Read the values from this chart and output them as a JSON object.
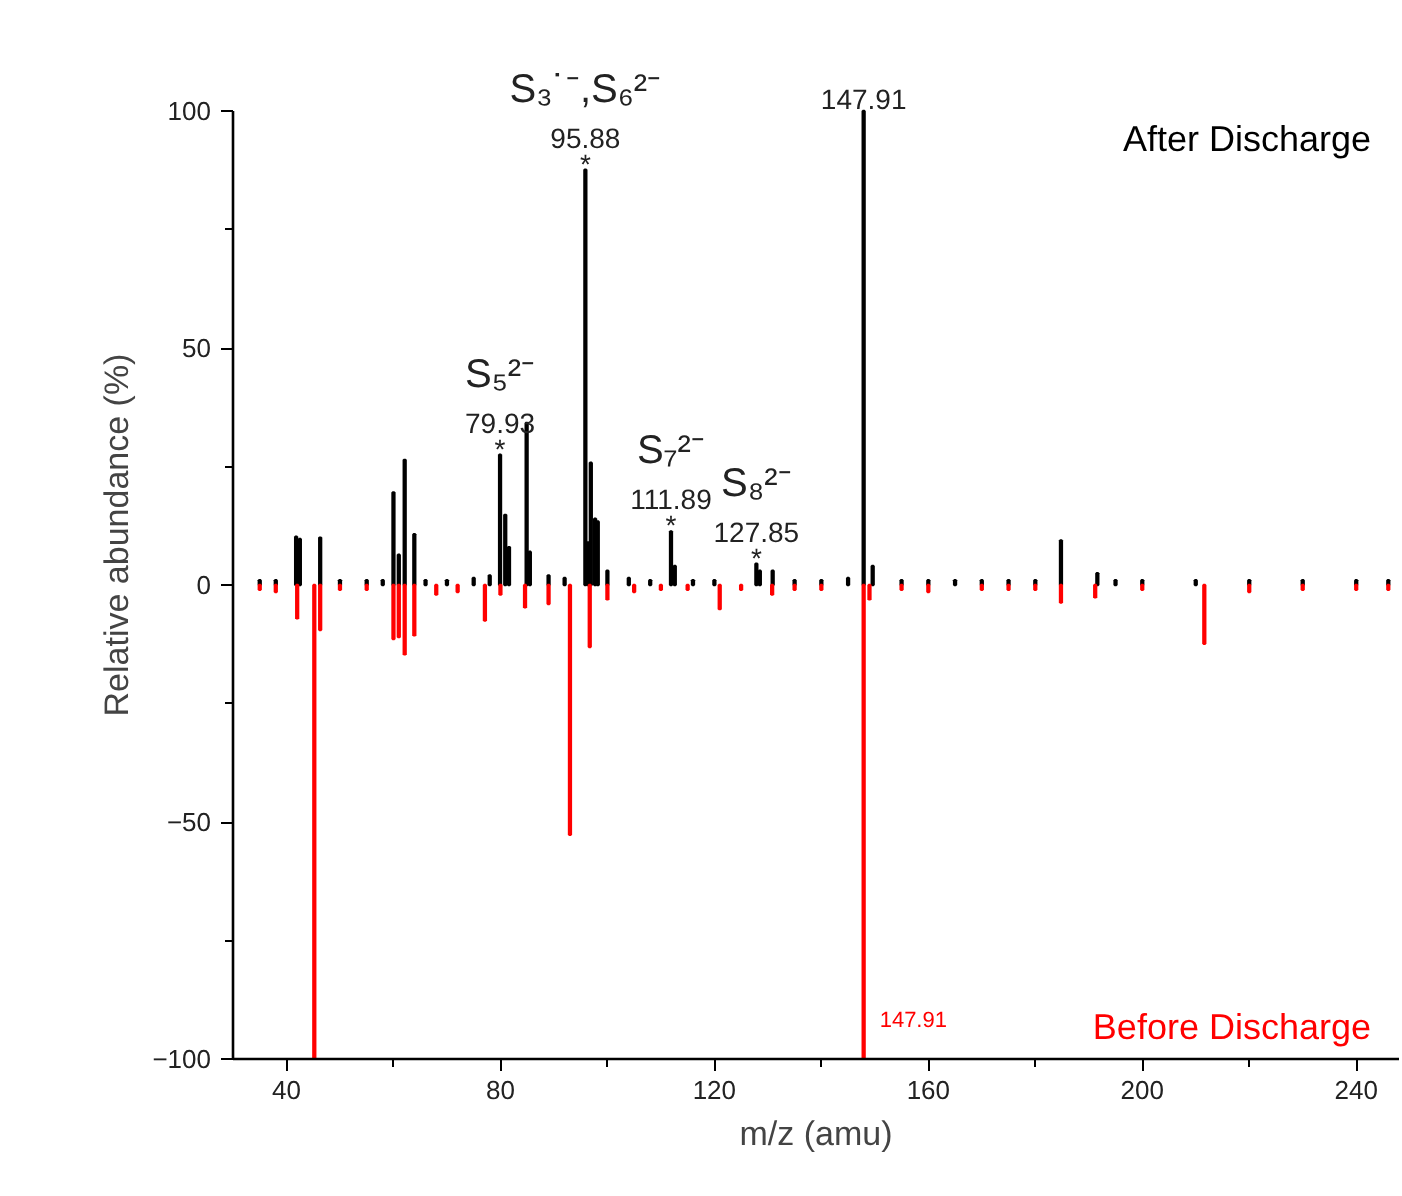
{
  "chart_data": {
    "type": "bar",
    "xlabel": "m/z (amu)",
    "ylabel": "Relative abundance (%)",
    "xlim": [
      30,
      248
    ],
    "xticks": [
      40,
      {
        "value": 60,
        "label": null
      },
      80,
      {
        "value": 100,
        "label": null
      },
      120,
      {
        "value": 140,
        "label": null
      },
      160,
      {
        "value": 180,
        "label": null
      },
      200,
      {
        "value": 220,
        "label": null
      },
      240
    ],
    "ylim": [
      -100,
      100
    ],
    "yticks": [
      -100,
      {
        "value": -75,
        "label": null
      },
      -50,
      {
        "value": -25,
        "label": null
      },
      0,
      {
        "value": 25,
        "label": null
      },
      50,
      {
        "value": 75,
        "label": null
      },
      100
    ],
    "grid": false,
    "series": [
      {
        "name": "After Discharge",
        "color": "#000000",
        "x": [
          35,
          38,
          41.8,
          42.5,
          46.3,
          50,
          55,
          58,
          60.0,
          61.0,
          62.1,
          63.9,
          66,
          70,
          75,
          78,
          79.93,
          80.9,
          81.6,
          84.9,
          85.5,
          89,
          92,
          95.88,
          96.4,
          96.9,
          97.7,
          98.2,
          100,
          104,
          108,
          111.89,
          112.6,
          116,
          120,
          127.85,
          128.5,
          130.9,
          135,
          140,
          145,
          147.91,
          149.6,
          155,
          160,
          165,
          170,
          175,
          180,
          184.8,
          191.6,
          195,
          200,
          210,
          220,
          230,
          240,
          246
        ],
        "values": [
          1,
          1,
          10.2,
          9.7,
          10,
          1,
          1,
          1,
          19.5,
          6.4,
          26.4,
          10.7,
          1,
          1,
          1.5,
          2,
          27.5,
          14.8,
          8,
          34.2,
          7,
          2,
          1.5,
          87.6,
          9,
          25.8,
          14,
          13.4,
          3,
          1.5,
          1,
          11.3,
          4,
          1,
          1,
          4.5,
          3,
          3,
          1,
          1,
          1.5,
          100,
          4,
          1,
          1,
          1,
          1,
          1,
          1,
          9.4,
          2.5,
          1,
          1,
          1,
          1,
          1,
          1,
          1
        ]
      },
      {
        "name": "Before Discharge",
        "color": "#ff0000",
        "x": [
          35,
          38,
          42,
          45.2,
          46.3,
          50,
          55,
          60,
          61,
          62.1,
          63.9,
          68,
          72,
          77.1,
          80,
          84.6,
          89,
          93,
          96.7,
          100,
          105,
          110,
          115,
          121,
          125,
          130.8,
          135,
          140,
          147.91,
          149,
          155,
          160,
          170,
          175,
          180,
          184.8,
          191.2,
          200,
          211.6,
          220,
          230,
          240,
          246
        ],
        "values": [
          -1,
          -1.5,
          -7,
          -100,
          -9.5,
          -1,
          -1,
          -11.4,
          -11,
          -14.6,
          -10.6,
          -2,
          -1.5,
          -7.5,
          -2,
          -4.7,
          -4,
          -52.7,
          -13.1,
          -3,
          -1.5,
          -1,
          -1,
          -5.1,
          -1,
          -2,
          -1,
          -1,
          -100,
          -3,
          -1,
          -1.5,
          -1,
          -1,
          -1,
          -3.7,
          -2.6,
          -1,
          -12.4,
          -1.5,
          -1,
          -1,
          -1
        ]
      }
    ],
    "annotations": [
      {
        "text": "*",
        "x": 95.88,
        "y": 87.6
      },
      {
        "text": "95.88",
        "x": 95.88,
        "y": 87.6
      },
      {
        "text": "S₃˙⁻,S₆²⁻",
        "x": 95.88,
        "y": 87.6
      },
      {
        "text": "*",
        "x": 79.93,
        "y": 27.5
      },
      {
        "text": "79.93",
        "x": 79.93,
        "y": 27.5
      },
      {
        "text": "S₅²⁻",
        "x": 79.93,
        "y": 27.5
      },
      {
        "text": "*",
        "x": 111.89,
        "y": 11.3
      },
      {
        "text": "111.89",
        "x": 111.89,
        "y": 11.3
      },
      {
        "text": "S₇²⁻",
        "x": 111.89,
        "y": 11.3
      },
      {
        "text": "*",
        "x": 127.85,
        "y": 4.5
      },
      {
        "text": "127.85",
        "x": 127.85,
        "y": 4.5
      },
      {
        "text": "S₈²⁻",
        "x": 127.85,
        "y": 4.5
      },
      {
        "text": "147.91",
        "x": 147.91,
        "y": 100
      },
      {
        "text": "147.91",
        "x": 147.91,
        "y": -100
      }
    ]
  }
}
